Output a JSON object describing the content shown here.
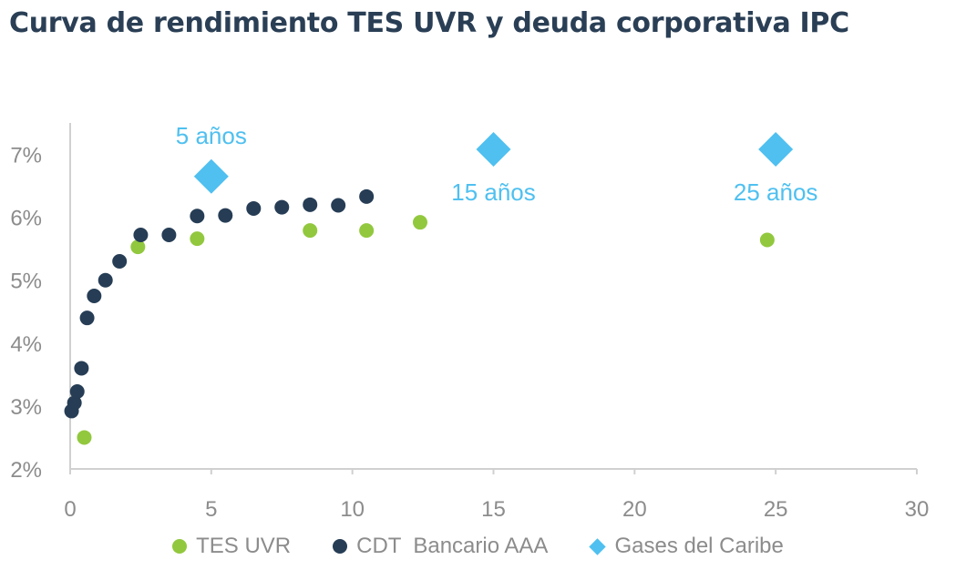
{
  "chart_data": {
    "type": "scatter",
    "title": "Curva de rendimiento TES UVR y deuda corporativa IPC",
    "xlabel": "",
    "ylabel": "",
    "xlim": [
      0,
      30
    ],
    "ylim": [
      2,
      7.5
    ],
    "x_ticks": [
      "0",
      "5",
      "10",
      "15",
      "20",
      "25",
      "30"
    ],
    "y_ticks": [
      "2%",
      "3%",
      "4%",
      "5%",
      "6%",
      "7%"
    ],
    "legend_position": "bottom",
    "series": [
      {
        "name": "TES UVR",
        "marker": "circle",
        "color": "#92c83e",
        "points": [
          [
            0.5,
            2.5
          ],
          [
            2.4,
            5.53
          ],
          [
            4.5,
            5.66
          ],
          [
            8.5,
            5.79
          ],
          [
            10.5,
            5.79
          ],
          [
            12.4,
            5.92
          ],
          [
            24.7,
            5.64
          ]
        ]
      },
      {
        "name": "CDT  Bancario AAA",
        "marker": "circle",
        "color": "#263d55",
        "points": [
          [
            0.05,
            2.92
          ],
          [
            0.15,
            3.05
          ],
          [
            0.25,
            3.23
          ],
          [
            0.4,
            3.6
          ],
          [
            0.6,
            4.4
          ],
          [
            0.85,
            4.75
          ],
          [
            1.25,
            5.0
          ],
          [
            1.75,
            5.3
          ],
          [
            2.5,
            5.72
          ],
          [
            3.5,
            5.72
          ],
          [
            4.5,
            6.02
          ],
          [
            5.5,
            6.03
          ],
          [
            6.5,
            6.14
          ],
          [
            7.5,
            6.16
          ],
          [
            8.5,
            6.2
          ],
          [
            9.5,
            6.19
          ],
          [
            10.5,
            6.33
          ]
        ]
      },
      {
        "name": "Gases del Caribe",
        "marker": "diamond",
        "color": "#4fc0f0",
        "points": [
          [
            5.0,
            6.65
          ],
          [
            15.0,
            7.08
          ],
          [
            25.0,
            7.08
          ]
        ]
      }
    ],
    "annotations": [
      {
        "text": "5 años",
        "x": 5.0,
        "y": 7.3
      },
      {
        "text": "15 años",
        "x": 15.0,
        "y": 6.4
      },
      {
        "text": "25 años",
        "x": 25.0,
        "y": 6.4
      }
    ]
  },
  "colors": {
    "title": "#2a3f55",
    "axis": "#d0d0d0",
    "tick_text": "#8c8c8c"
  }
}
